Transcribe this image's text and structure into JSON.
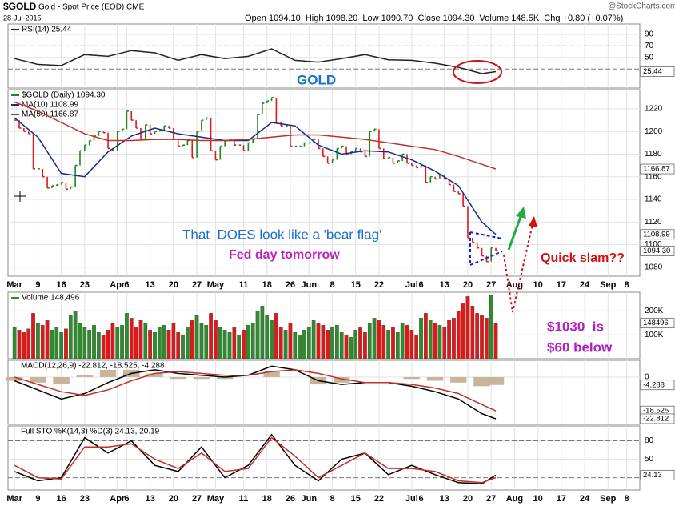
{
  "header": {
    "symbol": "$GOLD",
    "name": "Gold - Spot Price (EOD) CME",
    "date": "28-Jul-2015",
    "quote": "Open 1094.10  High 1098.20  Low 1090.70  Close 1094.30  Volume 148.5K  Chg +0.80 (+0.07%)",
    "brand": "@StockCharts.com"
  },
  "annotations": [
    "GOLD",
    "That  DOES look like a 'bear flag'",
    "Fed day tomorrow",
    "Quick slam??",
    "$1030  is",
    "$60 below"
  ],
  "chart_data": [
    {
      "type": "line",
      "xlim": [
        -1.4,
        133.8
      ],
      "ylim": [
        -3,
        108
      ],
      "yticks": [
        50,
        70,
        90
      ],
      "ref_lines": [
        30,
        70
      ],
      "value_boxes": [
        25.44
      ],
      "series": [
        {
          "name": "RSI(14) 25.44",
          "color": "#222222",
          "x": [
            0,
            5,
            10,
            15,
            20,
            25,
            30,
            35,
            40,
            45,
            50,
            55,
            60,
            65,
            70,
            75,
            80,
            85,
            90,
            95,
            100,
            103
          ],
          "values": [
            48,
            38,
            36,
            55,
            52,
            62,
            58,
            45,
            55,
            48,
            52,
            65,
            45,
            42,
            48,
            55,
            46,
            45,
            40,
            33,
            22,
            25.44
          ]
        }
      ]
    },
    {
      "type": "price",
      "xlim": [
        -1.4,
        133.8
      ],
      "ylim": [
        1072,
        1237
      ],
      "yticks": [
        1080,
        1100,
        1120,
        1140,
        1160,
        1180,
        1200,
        1220
      ],
      "grid": true,
      "value_boxes": [
        1166.87,
        1108.99,
        {
          "value": 1094.3,
          "label": "1094.30"
        }
      ],
      "xticks": [
        {
          "value": 0,
          "label": "Mar"
        },
        {
          "value": 5,
          "label": "9"
        },
        {
          "value": 10,
          "label": "16"
        },
        {
          "value": 15,
          "label": "23"
        },
        {
          "value": 22,
          "label": "Apr"
        },
        {
          "value": 24,
          "label": "6"
        },
        {
          "value": 29,
          "label": "13"
        },
        {
          "value": 34,
          "label": "20"
        },
        {
          "value": 39,
          "label": "27"
        },
        {
          "value": 43,
          "label": "May"
        },
        {
          "value": 49,
          "label": "11"
        },
        {
          "value": 54,
          "label": "18"
        },
        {
          "value": 59,
          "label": "26"
        },
        {
          "value": 63,
          "label": "Jun"
        },
        {
          "value": 68,
          "label": "8"
        },
        {
          "value": 73,
          "label": "15"
        },
        {
          "value": 78,
          "label": "22"
        },
        {
          "value": 85,
          "label": "Jul"
        },
        {
          "value": 87,
          "label": "6"
        },
        {
          "value": 92,
          "label": "13"
        },
        {
          "value": 97,
          "label": "20"
        },
        {
          "value": 102,
          "label": "27"
        },
        {
          "value": 107,
          "label": "Aug"
        },
        {
          "value": 112,
          "label": "10"
        },
        {
          "value": 117,
          "label": "17"
        },
        {
          "value": 122,
          "label": "24"
        },
        {
          "value": 127,
          "label": "Sep"
        },
        {
          "value": 131,
          "label": "8"
        }
      ],
      "series": [
        {
          "name": "$GOLD (Daily) 1094.30",
          "style": "bars",
          "up_color": "#1e8a1e",
          "down_color": "#e01818",
          "values": [
            1210,
            1203,
            1200,
            1198,
            1167,
            1167,
            1160,
            1150,
            1152,
            1153,
            1155,
            1149,
            1151,
            1170,
            1183,
            1188,
            1192,
            1196,
            1200,
            1199,
            1185,
            1183,
            1200,
            1202,
            1218,
            1210,
            1203,
            1193,
            1206,
            1198,
            1200,
            1201,
            1205,
            1203,
            1193,
            1187,
            1188,
            1192,
            1177,
            1200,
            1210,
            1212,
            1183,
            1175,
            1187,
            1192,
            1193,
            1188,
            1188,
            1183,
            1190,
            1193,
            1215,
            1225,
            1227,
            1230,
            1208,
            1205,
            1205,
            1187,
            1187,
            1187,
            1190,
            1190,
            1193,
            1185,
            1178,
            1172,
            1175,
            1185,
            1187,
            1180,
            1182,
            1185,
            1182,
            1178,
            1200,
            1202,
            1185,
            1176,
            1177,
            1172,
            1174,
            1180,
            1172,
            1170,
            1168,
            1170,
            1155,
            1160,
            1158,
            1162,
            1158,
            1153,
            1147,
            1145,
            1134,
            1106,
            1102,
            1097,
            1090,
            1085,
            1097,
            1094.3
          ]
        },
        {
          "name": "MA(10) 1108.99",
          "color": "#1a2a8c",
          "x": [
            0,
            5,
            10,
            15,
            20,
            25,
            30,
            35,
            40,
            45,
            50,
            55,
            60,
            65,
            70,
            75,
            80,
            85,
            90,
            95,
            100,
            103
          ],
          "values": [
            1212,
            1195,
            1163,
            1160,
            1182,
            1196,
            1203,
            1198,
            1195,
            1192,
            1192,
            1208,
            1205,
            1188,
            1180,
            1183,
            1182,
            1175,
            1165,
            1152,
            1120,
            1108.99
          ]
        },
        {
          "name": "MA(50) 1166.87",
          "color": "#c0302a",
          "x": [
            0,
            5,
            10,
            15,
            20,
            25,
            30,
            35,
            40,
            45,
            50,
            55,
            60,
            65,
            70,
            75,
            80,
            85,
            90,
            95,
            100,
            103
          ],
          "values": [
            1226,
            1218,
            1208,
            1198,
            1192,
            1192,
            1193,
            1193,
            1192,
            1192,
            1193,
            1195,
            1197,
            1197,
            1195,
            1193,
            1190,
            1187,
            1184,
            1178,
            1171,
            1166.87
          ]
        }
      ]
    },
    {
      "type": "volume",
      "xlim": [
        -1.4,
        133.8
      ],
      "ylim": [
        0,
        278000
      ],
      "yticks": [
        {
          "value": 100000,
          "label": "100K"
        },
        {
          "value": 200000,
          "label": "200K"
        }
      ],
      "value_boxes": [
        148496
      ],
      "series": [
        {
          "name": "Volume 148,496",
          "up_color": "#2e8b2e",
          "down_color": "#e01818",
          "values": [
            130000,
            120000,
            110000,
            125000,
            190000,
            150000,
            140000,
            160000,
            120000,
            130000,
            110000,
            125000,
            180000,
            200000,
            150000,
            130000,
            120000,
            140000,
            110000,
            100000,
            120000,
            150000,
            130000,
            140000,
            190000,
            170000,
            130000,
            160000,
            150000,
            120000,
            110000,
            130000,
            140000,
            120000,
            150000,
            110000,
            100000,
            130000,
            160000,
            180000,
            150000,
            140000,
            190000,
            160000,
            130000,
            120000,
            110000,
            130000,
            100000,
            120000,
            140000,
            150000,
            200000,
            220000,
            180000,
            160000,
            190000,
            130000,
            120000,
            150000,
            110000,
            100000,
            120000,
            130000,
            160000,
            150000,
            140000,
            120000,
            130000,
            140000,
            110000,
            100000,
            90000,
            120000,
            130000,
            110000,
            150000,
            170000,
            160000,
            140000,
            120000,
            130000,
            110000,
            150000,
            140000,
            120000,
            100000,
            170000,
            190000,
            160000,
            150000,
            140000,
            130000,
            160000,
            170000,
            200000,
            230000,
            260000,
            220000,
            190000,
            180000,
            170000,
            265000,
            148496
          ]
        }
      ]
    },
    {
      "type": "macd",
      "title": "MACD(12,26,9) -22.812, -18.525, -4.288",
      "xlim": [
        -1.4,
        133.8
      ],
      "ylim": [
        -25.9,
        9.2
      ],
      "yticks": [
        0
      ],
      "value_boxes": [
        -4.288,
        -18.525,
        -22.812
      ],
      "series": [
        {
          "style": "histogram",
          "color": "#c8b49a",
          "x": [
            0,
            5,
            10,
            15,
            20,
            25,
            30,
            35,
            40,
            45,
            50,
            55,
            60,
            65,
            70,
            75,
            80,
            85,
            90,
            95,
            100,
            103
          ],
          "values": [
            -2,
            -3,
            -4,
            1,
            4,
            4,
            2,
            -1,
            -1,
            -1,
            0,
            3,
            0,
            -4,
            -3,
            0,
            0,
            -1,
            -2,
            -3,
            -5,
            -4.288
          ]
        },
        {
          "color": "#000000",
          "x": [
            0,
            5,
            10,
            15,
            20,
            25,
            30,
            35,
            40,
            45,
            50,
            55,
            60,
            65,
            70,
            75,
            80,
            85,
            90,
            95,
            100,
            103
          ],
          "values": [
            -2,
            -7,
            -12,
            -9,
            -3,
            2,
            4,
            2,
            1,
            0,
            1,
            6,
            4,
            -2,
            -4,
            -3,
            -3,
            -5,
            -8,
            -12,
            -20,
            -22.812
          ]
        },
        {
          "color": "#c0302a",
          "x": [
            0,
            5,
            10,
            15,
            20,
            25,
            30,
            35,
            40,
            45,
            50,
            55,
            60,
            65,
            70,
            75,
            80,
            85,
            90,
            95,
            100,
            103
          ],
          "values": [
            0,
            -4,
            -8,
            -10,
            -7,
            -2,
            2,
            3,
            2,
            1,
            1,
            3,
            4,
            2,
            -1,
            -3,
            -3,
            -4,
            -6,
            -9,
            -15,
            -18.525
          ]
        }
      ]
    },
    {
      "type": "line",
      "title": "Full STO %K(14,3) %D(3) 24.13, 20.19",
      "xlim": [
        -1.4,
        133.8
      ],
      "ylim": [
        0,
        104
      ],
      "yticks": [
        50,
        80
      ],
      "ref_lines": [
        20,
        80
      ],
      "value_boxes": [
        24.13
      ],
      "xticks": [
        {
          "value": 0,
          "label": "Mar"
        },
        {
          "value": 5,
          "label": "9"
        },
        {
          "value": 10,
          "label": "16"
        },
        {
          "value": 15,
          "label": "23"
        },
        {
          "value": 22,
          "label": "Apr"
        },
        {
          "value": 24,
          "label": "6"
        },
        {
          "value": 29,
          "label": "13"
        },
        {
          "value": 34,
          "label": "20"
        },
        {
          "value": 39,
          "label": "27"
        },
        {
          "value": 43,
          "label": "May"
        },
        {
          "value": 49,
          "label": "11"
        },
        {
          "value": 54,
          "label": "18"
        },
        {
          "value": 59,
          "label": "26"
        },
        {
          "value": 63,
          "label": "Jun"
        },
        {
          "value": 68,
          "label": "8"
        },
        {
          "value": 73,
          "label": "15"
        },
        {
          "value": 78,
          "label": "22"
        },
        {
          "value": 85,
          "label": "Jul"
        },
        {
          "value": 87,
          "label": "6"
        },
        {
          "value": 92,
          "label": "13"
        },
        {
          "value": 97,
          "label": "20"
        },
        {
          "value": 102,
          "label": "27"
        },
        {
          "value": 107,
          "label": "Aug"
        },
        {
          "value": 112,
          "label": "10"
        },
        {
          "value": 117,
          "label": "17"
        },
        {
          "value": 122,
          "label": "24"
        },
        {
          "value": 127,
          "label": "Sep"
        },
        {
          "value": 131,
          "label": "8"
        }
      ],
      "series": [
        {
          "color": "#000000",
          "x": [
            0,
            5,
            10,
            15,
            20,
            25,
            30,
            35,
            40,
            45,
            50,
            55,
            60,
            65,
            70,
            75,
            80,
            85,
            90,
            95,
            100,
            103
          ],
          "values": [
            30,
            15,
            20,
            85,
            60,
            80,
            40,
            30,
            70,
            20,
            40,
            90,
            40,
            15,
            50,
            60,
            25,
            40,
            25,
            12,
            10,
            24.13
          ]
        },
        {
          "color": "#c0302a",
          "x": [
            0,
            5,
            10,
            15,
            20,
            25,
            30,
            35,
            40,
            45,
            50,
            55,
            60,
            65,
            70,
            75,
            80,
            85,
            90,
            95,
            100,
            103
          ],
          "values": [
            40,
            20,
            18,
            70,
            70,
            75,
            50,
            35,
            60,
            30,
            35,
            85,
            55,
            20,
            40,
            60,
            35,
            35,
            30,
            15,
            12,
            20.19
          ]
        }
      ]
    }
  ]
}
